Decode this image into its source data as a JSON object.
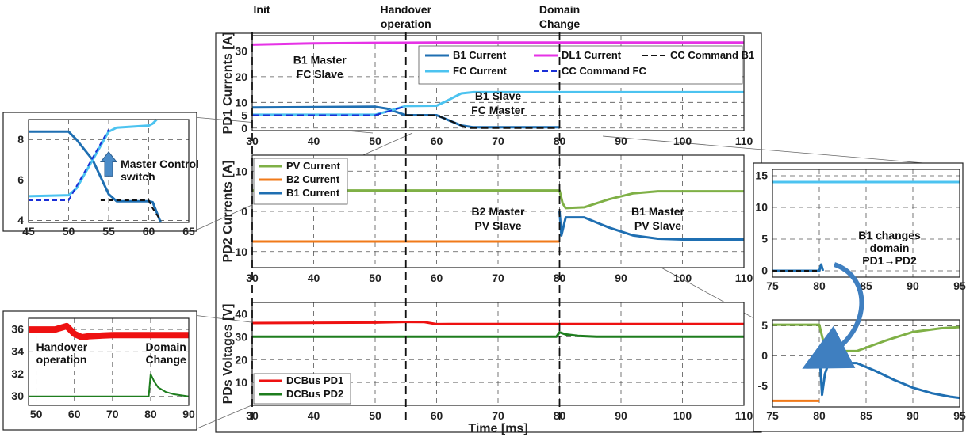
{
  "markers": [
    {
      "x": 30,
      "label_lines": [
        "Init"
      ]
    },
    {
      "x": 55,
      "label_lines": [
        "Handover",
        "operation"
      ]
    },
    {
      "x": 80,
      "label_lines": [
        "Domain",
        "Change"
      ]
    }
  ],
  "colors": {
    "b1": "#1f6fb2",
    "dl1": "#e633e6",
    "fc": "#4cc3f0",
    "cc_b1": "#111111",
    "cc_fc": "#1a2fd6",
    "pv": "#7fb046",
    "b2": "#f07a1a",
    "pd1": "#ee1111",
    "pd2": "#1e7d1e"
  },
  "chart_data": [
    {
      "id": "pd1",
      "type": "line",
      "ylabel": "PD1 Currents [A]",
      "xlabel": "",
      "xlim": [
        30,
        110
      ],
      "ylim": [
        -1,
        36
      ],
      "xticks": [
        30,
        40,
        50,
        60,
        70,
        80,
        90,
        100,
        110
      ],
      "yticks": [
        0,
        5,
        10,
        20,
        30
      ],
      "grid": true,
      "legend_position": "top-right",
      "annotations": [
        {
          "x": 41,
          "y": 25,
          "lines": [
            "B1 Master",
            "FC Slave"
          ]
        },
        {
          "x": 70,
          "y": 11,
          "lines": [
            "B1 Slave",
            "FC Master"
          ]
        }
      ],
      "series": [
        {
          "name": "B1 Current",
          "color_key": "b1",
          "dash": "",
          "x": [
            30,
            50,
            52,
            55,
            60,
            62,
            64,
            66,
            80
          ],
          "y": [
            8,
            8.3,
            7.5,
            5,
            5,
            3,
            1,
            0.3,
            0.3
          ]
        },
        {
          "name": "DL1 Current",
          "color_key": "dl1",
          "dash": "",
          "x": [
            30,
            40,
            50,
            60,
            70,
            80,
            90,
            100,
            110
          ],
          "y": [
            32.5,
            33,
            33.2,
            33.3,
            33.3,
            33.3,
            33.3,
            33.3,
            33.3
          ]
        },
        {
          "name": "FC Current",
          "color_key": "fc",
          "dash": "",
          "x": [
            30,
            50,
            52,
            55,
            60,
            62,
            64,
            66,
            80,
            90,
            100,
            110
          ],
          "y": [
            5.2,
            5.2,
            6.5,
            8.6,
            8.7,
            11,
            13.5,
            14,
            14,
            14,
            14,
            14
          ]
        },
        {
          "name": "CC Command B1",
          "color_key": "cc_b1",
          "dash": "9 5",
          "x": [
            55,
            60,
            62,
            65,
            80
          ],
          "y": [
            5,
            5,
            3,
            0,
            0
          ]
        },
        {
          "name": "CC Command FC",
          "color_key": "cc_fc",
          "dash": "9 5",
          "x": [
            30,
            50,
            55
          ],
          "y": [
            5,
            5,
            8.5
          ]
        }
      ]
    },
    {
      "id": "pd2",
      "type": "line",
      "ylabel": "PD2 Currents [A]",
      "xlabel": "",
      "xlim": [
        30,
        110
      ],
      "ylim": [
        -14,
        14
      ],
      "xticks": [
        30,
        40,
        50,
        60,
        70,
        80,
        90,
        100,
        110
      ],
      "yticks": [
        -10,
        0,
        10
      ],
      "grid": true,
      "legend_position": "top-left",
      "annotations": [
        {
          "x": 70,
          "y": -1,
          "lines": [
            "B2 Master",
            "PV Slave"
          ]
        },
        {
          "x": 96,
          "y": -1,
          "lines": [
            "B1 Master",
            "PV Slave"
          ]
        }
      ],
      "series": [
        {
          "name": "PV Current",
          "color_key": "pv",
          "dash": "",
          "x": [
            30,
            80,
            80.5,
            81,
            84,
            88,
            92,
            96,
            110
          ],
          "y": [
            5.2,
            5.2,
            2,
            0.8,
            1,
            3,
            4.5,
            5,
            5
          ]
        },
        {
          "name": "B2 Current",
          "color_key": "b2",
          "dash": "",
          "x": [
            30,
            80
          ],
          "y": [
            -7.5,
            -7.5
          ]
        },
        {
          "name": "B1 Current",
          "color_key": "b1",
          "dash": "",
          "x": [
            80,
            80.3,
            81,
            84,
            88,
            92,
            96,
            100,
            110
          ],
          "y": [
            0,
            -6,
            -1.5,
            -1.5,
            -4,
            -6,
            -6.8,
            -7,
            -7
          ]
        }
      ]
    },
    {
      "id": "pds",
      "type": "line",
      "ylabel": "PDs Voltages [V]",
      "xlabel": "Time [ms]",
      "xlim": [
        30,
        110
      ],
      "ylim": [
        0,
        45
      ],
      "xticks": [
        30,
        40,
        50,
        60,
        70,
        80,
        90,
        100,
        110
      ],
      "yticks": [
        10,
        20,
        30,
        40
      ],
      "grid": true,
      "legend_position": "bottom-left",
      "annotations": [],
      "series": [
        {
          "name": "DCBus PD1",
          "color_key": "pd1",
          "dash": "",
          "x": [
            30,
            50,
            55,
            58,
            60,
            62,
            80,
            110
          ],
          "y": [
            36,
            36.2,
            36.5,
            36.4,
            35.5,
            35.6,
            35.6,
            35.6
          ]
        },
        {
          "name": "DCBus PD2",
          "color_key": "pd2",
          "dash": "",
          "x": [
            30,
            79.5,
            80,
            81,
            83,
            86,
            110
          ],
          "y": [
            30,
            30,
            32,
            31,
            30.4,
            30,
            30
          ]
        }
      ]
    },
    {
      "id": "zoom_pd1",
      "type": "line",
      "xlim": [
        45,
        65
      ],
      "ylim": [
        3.9,
        9.0
      ],
      "xticks": [
        45,
        50,
        55,
        60,
        65
      ],
      "yticks": [
        4,
        6,
        8
      ],
      "grid": true,
      "annotations": [
        {
          "x": 56.5,
          "y": 6.6,
          "lines": [
            "Master Control",
            "switch"
          ],
          "align": "start"
        }
      ],
      "series": [
        {
          "color_key": "b1",
          "dash": "",
          "x": [
            45,
            50,
            51,
            53,
            55,
            56,
            60,
            60.5,
            61,
            61.5
          ],
          "y": [
            8.4,
            8.4,
            8.0,
            7.0,
            5.3,
            4.95,
            4.95,
            4.9,
            4.4,
            3.9
          ]
        },
        {
          "color_key": "fc",
          "dash": "",
          "x": [
            45,
            50,
            51,
            53,
            55,
            56,
            60,
            60.5,
            61
          ],
          "y": [
            5.2,
            5.25,
            5.6,
            7.0,
            8.4,
            8.6,
            8.7,
            8.8,
            9.0
          ]
        },
        {
          "color_key": "cc_b1",
          "dash": "6 4",
          "x": [
            54,
            60,
            60.5,
            61.5
          ],
          "y": [
            5,
            5,
            4.6,
            4.0
          ]
        },
        {
          "color_key": "cc_fc",
          "dash": "6 4",
          "x": [
            45,
            50,
            55
          ],
          "y": [
            5,
            5,
            8.5
          ]
        }
      ]
    },
    {
      "id": "zoom_pds",
      "type": "line",
      "xlim": [
        48,
        90
      ],
      "ylim": [
        29.2,
        37
      ],
      "xticks": [
        50,
        60,
        70,
        80,
        90
      ],
      "yticks": [
        30,
        32,
        34,
        36
      ],
      "grid": true,
      "annotations": [
        {
          "x": 50,
          "y": 34.1,
          "lines": [
            "Handover",
            "operation"
          ],
          "align": "start"
        },
        {
          "x": 84,
          "y": 34.1,
          "lines": [
            "Domain",
            "Change"
          ],
          "align": "middle"
        }
      ],
      "series": [
        {
          "color_key": "pd1",
          "dash": "",
          "width": 8,
          "x": [
            48,
            55,
            58,
            60,
            62,
            64,
            70,
            80,
            90
          ],
          "y": [
            36,
            36,
            36.3,
            35.6,
            35.3,
            35.4,
            35.5,
            35.5,
            35.5
          ]
        },
        {
          "color_key": "pd2",
          "dash": "",
          "width": 2,
          "x": [
            48,
            79.5,
            80,
            81,
            82,
            84,
            86,
            90
          ],
          "y": [
            30,
            30,
            32,
            31.3,
            30.8,
            30.4,
            30.2,
            30
          ]
        }
      ]
    },
    {
      "id": "zoom_b1_top",
      "type": "line",
      "xlim": [
        75,
        95
      ],
      "ylim": [
        -1,
        16
      ],
      "xticks": [
        75,
        80,
        85,
        90,
        95
      ],
      "yticks": [
        0,
        5,
        10,
        15
      ],
      "grid": true,
      "annotations": [
        {
          "x": 87.5,
          "y": 5,
          "lines": [
            "B1 changes",
            "domain",
            "PD1→PD2"
          ],
          "align": "middle"
        }
      ],
      "series": [
        {
          "color_key": "fc",
          "dash": "",
          "x": [
            75,
            80,
            85,
            90,
            95
          ],
          "y": [
            14,
            14,
            14,
            14,
            14
          ]
        },
        {
          "color_key": "b1",
          "dash": "",
          "x": [
            75,
            80,
            80.2,
            80.4
          ],
          "y": [
            0,
            0,
            1,
            0
          ]
        },
        {
          "color_key": "cc_b1",
          "dash": "6 4",
          "x": [
            75,
            80
          ],
          "y": [
            0,
            0
          ]
        }
      ]
    },
    {
      "id": "zoom_b1_bottom",
      "type": "line",
      "xlim": [
        75,
        95
      ],
      "ylim": [
        -8.5,
        6
      ],
      "xticks": [
        75,
        80,
        85,
        90,
        95
      ],
      "yticks": [
        -5,
        0,
        5
      ],
      "grid": true,
      "annotations": [],
      "series": [
        {
          "color_key": "pv",
          "dash": "",
          "x": [
            75,
            80,
            80.5,
            81,
            84,
            87,
            90,
            93,
            95
          ],
          "y": [
            5.2,
            5.2,
            2,
            0.8,
            0.8,
            2.5,
            4,
            4.6,
            4.8
          ]
        },
        {
          "color_key": "b2",
          "dash": "",
          "x": [
            75,
            80
          ],
          "y": [
            -7.5,
            -7.5
          ]
        },
        {
          "color_key": "b1",
          "dash": "",
          "x": [
            80,
            80.3,
            80.6,
            81,
            84,
            86,
            88,
            90,
            92,
            94,
            95
          ],
          "y": [
            1,
            -6.5,
            -3,
            -1.2,
            -1.2,
            -2.5,
            -4,
            -5.3,
            -6.2,
            -6.8,
            -7
          ]
        }
      ]
    }
  ]
}
